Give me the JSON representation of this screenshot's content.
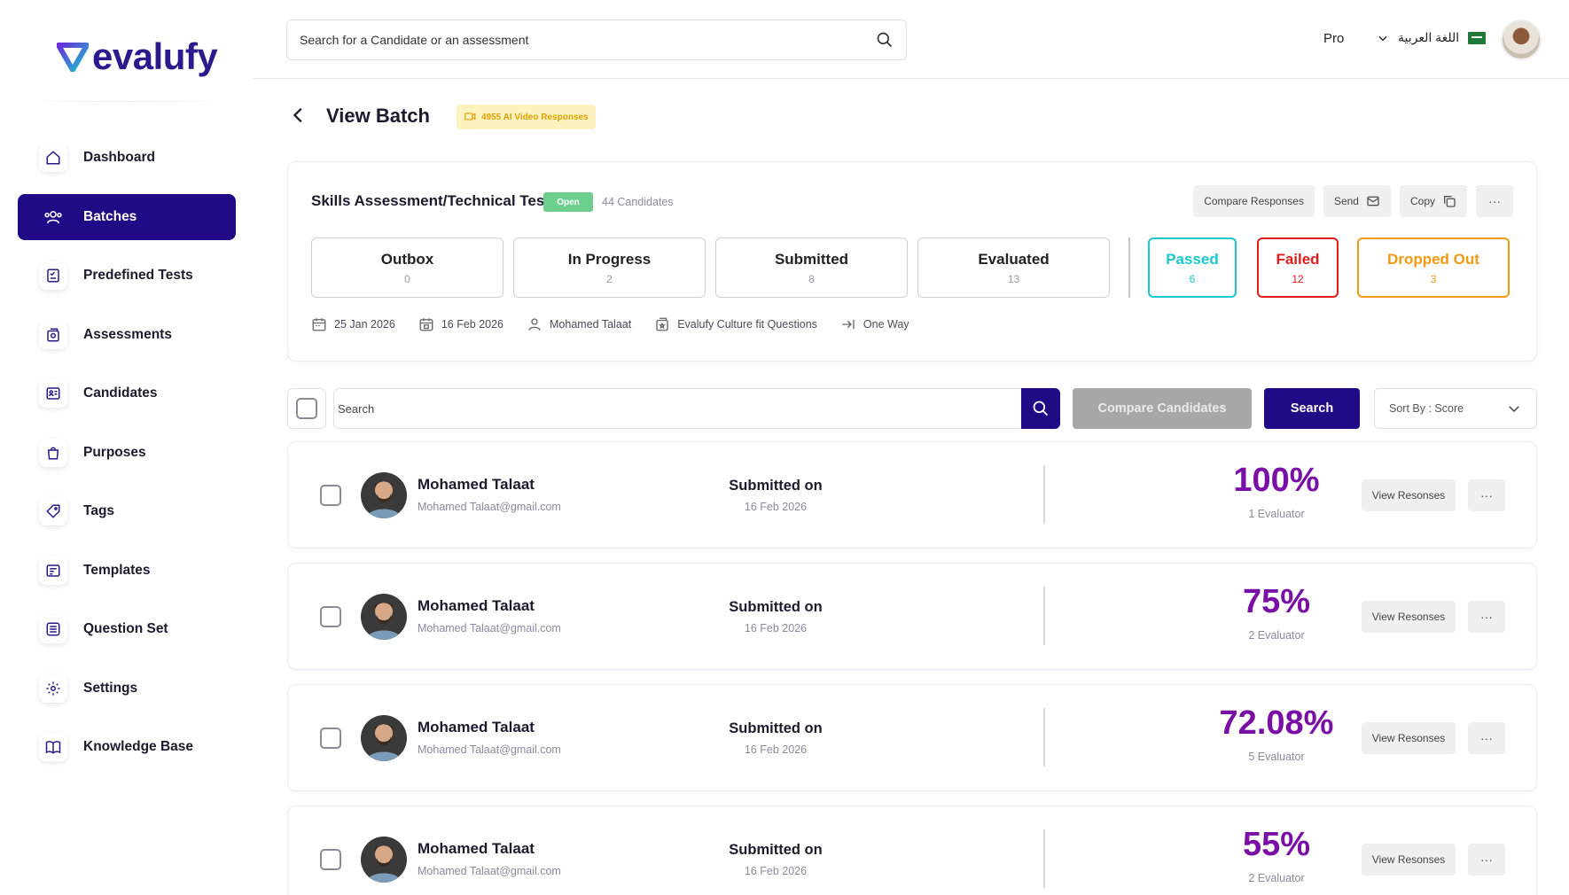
{
  "brand": {
    "name": "evalufy"
  },
  "sidebar": {
    "items": [
      {
        "label": "Dashboard"
      },
      {
        "label": "Batches"
      },
      {
        "label": "Predefined Tests"
      },
      {
        "label": "Assessments"
      },
      {
        "label": "Candidates"
      },
      {
        "label": "Purposes"
      },
      {
        "label": "Tags"
      },
      {
        "label": "Templates"
      },
      {
        "label": "Question Set"
      },
      {
        "label": "Settings"
      },
      {
        "label": "Knowledge Base"
      }
    ],
    "active_index": 1
  },
  "header": {
    "search_placeholder": "Search for a Candidate or an assessment",
    "plan": "Pro",
    "language": "اللغة العربية"
  },
  "page": {
    "title": "View Batch",
    "ai_badge": "4955 AI Video Responses"
  },
  "batch": {
    "title": "Skills Assessment/Technical Test",
    "status": "Open",
    "candidates": "44 Candidates",
    "actions": {
      "compare": "Compare Responses",
      "send": "Send",
      "copy": "Copy",
      "more": "···"
    },
    "stats": [
      {
        "label": "Outbox",
        "value": "0"
      },
      {
        "label": "In Progress",
        "value": "2"
      },
      {
        "label": "Submitted",
        "value": "8"
      },
      {
        "label": "Evaluated",
        "value": "13"
      }
    ],
    "results": {
      "passed": {
        "label": "Passed",
        "value": "6"
      },
      "failed": {
        "label": "Failed",
        "value": "12"
      },
      "dropped": {
        "label": "Dropped Out",
        "value": "3"
      }
    },
    "meta": {
      "start_date": "25 Jan 2026",
      "end_date": "16 Feb 2026",
      "owner": "Mohamed Talaat",
      "question_set": "Evalufy Culture fit Questions",
      "mode": "One Way"
    }
  },
  "filters": {
    "search_placeholder": "Search",
    "compare_label": "Compare Candidates",
    "search_label": "Search",
    "sort_label": "Sort By : Score"
  },
  "candidates": [
    {
      "name": "Mohamed Talaat",
      "email": "Mohamed Talaat@gmail.com",
      "submitted_label": "Submitted on",
      "submitted_date": "16 Feb 2026",
      "score": "100%",
      "evaluators": "1 Evaluator",
      "view_label": "View Resonses",
      "more": "···"
    },
    {
      "name": "Mohamed Talaat",
      "email": "Mohamed Talaat@gmail.com",
      "submitted_label": "Submitted on",
      "submitted_date": "16 Feb 2026",
      "score": "75%",
      "evaluators": "2 Evaluator",
      "view_label": "View Resonses",
      "more": "···"
    },
    {
      "name": "Mohamed Talaat",
      "email": "Mohamed Talaat@gmail.com",
      "submitted_label": "Submitted on",
      "submitted_date": "16 Feb 2026",
      "score": "72.08%",
      "evaluators": "5 Evaluator",
      "view_label": "View Resonses",
      "more": "···"
    },
    {
      "name": "Mohamed Talaat",
      "email": "Mohamed Talaat@gmail.com",
      "submitted_label": "Submitted on",
      "submitted_date": "16 Feb 2026",
      "score": "55%",
      "evaluators": "2 Evaluator",
      "view_label": "View Resonses",
      "more": "···"
    }
  ],
  "colors": {
    "primary": "#220a86",
    "score": "#7a0fa6",
    "passed": "#18c7cf",
    "failed": "#e21b1b",
    "dropped": "#f29a10",
    "open": "#6dcf8e"
  }
}
